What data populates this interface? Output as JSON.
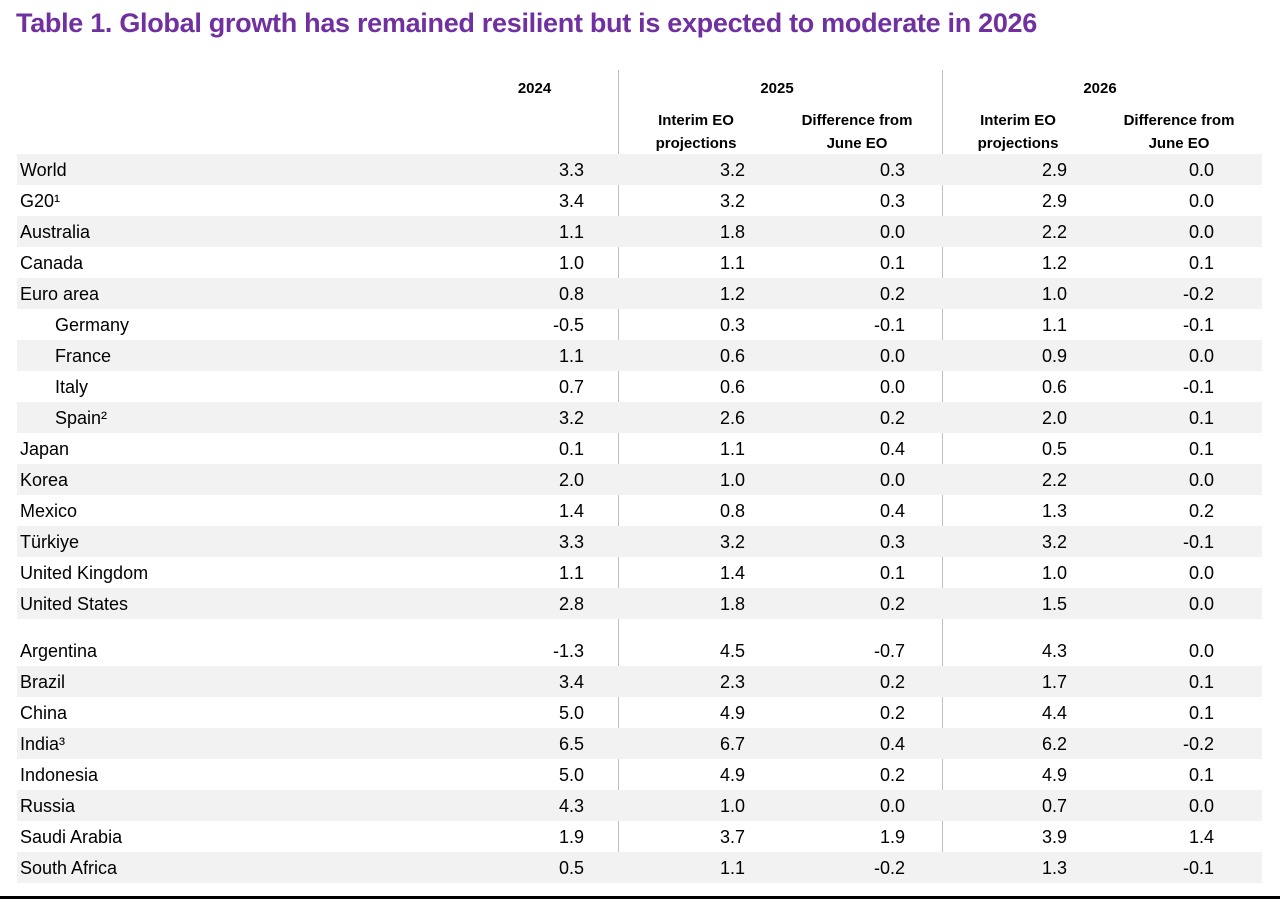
{
  "title": "Table 1. Global growth has remained resilient but is expected to moderate in 2026",
  "header": {
    "year_2024": "2024",
    "year_2025": "2025",
    "year_2026": "2026",
    "interim_2025_line1": "Interim EO",
    "interim_2025_line2": "projections",
    "diff_2025_line1": "Difference from",
    "diff_2025_line2": "June EO",
    "interim_2026_line1": "Interim EO",
    "interim_2026_line2": "projections",
    "diff_2026_line1": "Difference from",
    "diff_2026_line2": "June EO"
  },
  "rows": [
    {
      "label": "World",
      "v2024": "3.3",
      "p2025": "3.2",
      "d2025": "0.3",
      "p2026": "2.9",
      "d2026": "0.0"
    },
    {
      "label": "G20¹",
      "v2024": "3.4",
      "p2025": "3.2",
      "d2025": "0.3",
      "p2026": "2.9",
      "d2026": "0.0"
    },
    {
      "label": "Australia",
      "v2024": "1.1",
      "p2025": "1.8",
      "d2025": "0.0",
      "p2026": "2.2",
      "d2026": "0.0"
    },
    {
      "label": "Canada",
      "v2024": "1.0",
      "p2025": "1.1",
      "d2025": "0.1",
      "p2026": "1.2",
      "d2026": "0.1"
    },
    {
      "label": "Euro area",
      "v2024": "0.8",
      "p2025": "1.2",
      "d2025": "0.2",
      "p2026": "1.0",
      "d2026": "-0.2"
    },
    {
      "label": "Germany",
      "v2024": "-0.5",
      "p2025": "0.3",
      "d2025": "-0.1",
      "p2026": "1.1",
      "d2026": "-0.1"
    },
    {
      "label": "France",
      "v2024": "1.1",
      "p2025": "0.6",
      "d2025": "0.0",
      "p2026": "0.9",
      "d2026": "0.0"
    },
    {
      "label": "Italy",
      "v2024": "0.7",
      "p2025": "0.6",
      "d2025": "0.0",
      "p2026": "0.6",
      "d2026": "-0.1"
    },
    {
      "label": "Spain²",
      "v2024": "3.2",
      "p2025": "2.6",
      "d2025": "0.2",
      "p2026": "2.0",
      "d2026": "0.1"
    },
    {
      "label": "Japan",
      "v2024": "0.1",
      "p2025": "1.1",
      "d2025": "0.4",
      "p2026": "0.5",
      "d2026": "0.1"
    },
    {
      "label": "Korea",
      "v2024": "2.0",
      "p2025": "1.0",
      "d2025": "0.0",
      "p2026": "2.2",
      "d2026": "0.0"
    },
    {
      "label": "Mexico",
      "v2024": "1.4",
      "p2025": "0.8",
      "d2025": "0.4",
      "p2026": "1.3",
      "d2026": "0.2"
    },
    {
      "label": "Türkiye",
      "v2024": "3.3",
      "p2025": "3.2",
      "d2025": "0.3",
      "p2026": "3.2",
      "d2026": "-0.1"
    },
    {
      "label": "United Kingdom",
      "v2024": "1.1",
      "p2025": "1.4",
      "d2025": "0.1",
      "p2026": "1.0",
      "d2026": "0.0"
    },
    {
      "label": "United States",
      "v2024": "2.8",
      "p2025": "1.8",
      "d2025": "0.2",
      "p2026": "1.5",
      "d2026": "0.0"
    },
    {
      "label": "Argentina",
      "v2024": "-1.3",
      "p2025": "4.5",
      "d2025": "-0.7",
      "p2026": "4.3",
      "d2026": "0.0"
    },
    {
      "label": "Brazil",
      "v2024": "3.4",
      "p2025": "2.3",
      "d2025": "0.2",
      "p2026": "1.7",
      "d2026": "0.1"
    },
    {
      "label": "China",
      "v2024": "5.0",
      "p2025": "4.9",
      "d2025": "0.2",
      "p2026": "4.4",
      "d2026": "0.1"
    },
    {
      "label": "India³",
      "v2024": "6.5",
      "p2025": "6.7",
      "d2025": "0.4",
      "p2026": "6.2",
      "d2026": "-0.2"
    },
    {
      "label": "Indonesia",
      "v2024": "5.0",
      "p2025": "4.9",
      "d2025": "0.2",
      "p2026": "4.9",
      "d2026": "0.1"
    },
    {
      "label": "Russia",
      "v2024": "4.3",
      "p2025": "1.0",
      "d2025": "0.0",
      "p2026": "0.7",
      "d2026": "0.0"
    },
    {
      "label": "Saudi Arabia",
      "v2024": "1.9",
      "p2025": "3.7",
      "d2025": "1.9",
      "p2026": "3.9",
      "d2026": "1.4"
    },
    {
      "label": "South Africa",
      "v2024": "0.5",
      "p2025": "1.1",
      "d2025": "-0.2",
      "p2026": "1.3",
      "d2026": "-0.1"
    }
  ]
}
